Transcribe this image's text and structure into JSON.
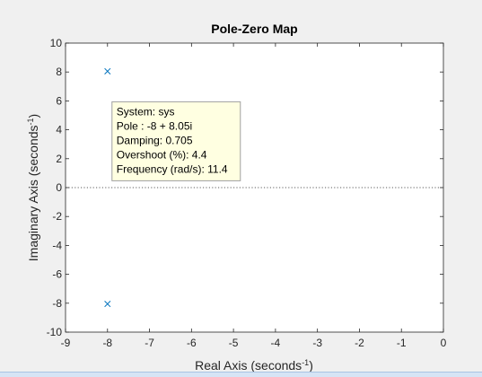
{
  "chart_data": {
    "type": "scatter",
    "title": "Pole-Zero Map",
    "xlabel": "Real Axis (seconds",
    "xlabel_sup": "-1",
    "xlabel_end": ")",
    "ylabel": "Imaginary Axis (seconds",
    "ylabel_sup": "-1",
    "ylabel_end": ")",
    "xlim": [
      -9,
      0
    ],
    "ylim": [
      -10,
      10
    ],
    "xticks": [
      -9,
      -8,
      -7,
      -6,
      -5,
      -4,
      -3,
      -2,
      -1,
      0
    ],
    "yticks": [
      -10,
      -8,
      -6,
      -4,
      -2,
      0,
      2,
      4,
      6,
      8,
      10
    ],
    "grid": false,
    "reference_line": {
      "y": 0,
      "style": "dotted"
    },
    "series": [
      {
        "marker": "x",
        "color": "#0072bd",
        "points": [
          {
            "x": -8,
            "y": 8.05
          },
          {
            "x": -8,
            "y": -8.05
          }
        ]
      }
    ],
    "datatip": {
      "lines": [
        "System: sys",
        "Pole : -8 + 8.05i",
        "Damping: 0.705",
        "Overshoot (%): 4.4",
        "Frequency (rad/s): 11.4"
      ],
      "anchor": {
        "x": -8,
        "y": 8.05
      },
      "background": "#ffffe1"
    }
  }
}
